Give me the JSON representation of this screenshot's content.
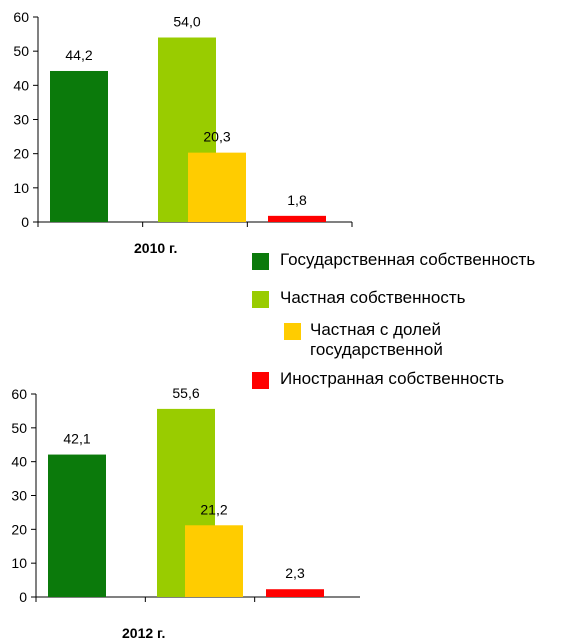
{
  "chart_data": [
    {
      "type": "bar",
      "title": "2010 г.",
      "ylim": [
        0,
        60
      ],
      "yticks": [
        "0",
        "10",
        "20",
        "30",
        "40",
        "50",
        "60"
      ],
      "series": [
        {
          "name": "Государственная собственность",
          "color": "#0b7a0b",
          "values": [
            44.2
          ],
          "label": "44,2"
        },
        {
          "name": "Частная собственность",
          "color": "#99cc00",
          "values": [
            54.0
          ],
          "label": "54,0"
        },
        {
          "name": "Частная с долей государственной",
          "color": "#ffcc00",
          "values": [
            20.3
          ],
          "label": "20,3"
        },
        {
          "name": "Иностранная собственность",
          "color": "#ff0000",
          "values": [
            1.8
          ],
          "label": "1,8"
        }
      ]
    },
    {
      "type": "bar",
      "title": "2012 г.",
      "ylim": [
        0,
        60
      ],
      "yticks": [
        "0",
        "10",
        "20",
        "30",
        "40",
        "50",
        "60"
      ],
      "series": [
        {
          "name": "Государственная собственность",
          "color": "#0b7a0b",
          "values": [
            42.1
          ],
          "label": "42,1"
        },
        {
          "name": "Частная собственность",
          "color": "#99cc00",
          "values": [
            55.6
          ],
          "label": "55,6"
        },
        {
          "name": "Частная с долей государственной",
          "color": "#ffcc00",
          "values": [
            21.2
          ],
          "label": "21,2"
        },
        {
          "name": "Иностранная собственность",
          "color": "#ff0000",
          "values": [
            2.3
          ],
          "label": "2,3"
        }
      ]
    }
  ],
  "legend": {
    "items": [
      {
        "label": "Государственная собственность",
        "color": "#0b7a0b"
      },
      {
        "label": "Частная собственность",
        "color": "#99cc00"
      },
      {
        "label": "Частная с долей государственной",
        "color": "#ffcc00"
      },
      {
        "label": "Иностранная собственность",
        "color": "#ff0000"
      }
    ]
  }
}
